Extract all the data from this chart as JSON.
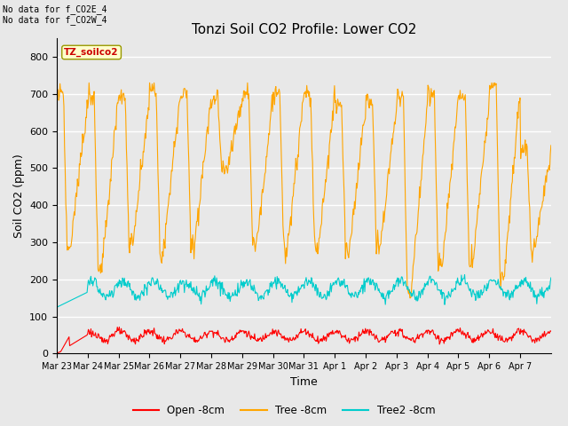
{
  "title": "Tonzi Soil CO2 Profile: Lower CO2",
  "ylabel": "Soil CO2 (ppm)",
  "xlabel": "Time",
  "warning_text": "No data for f_CO2E_4\nNo data for f_CO2W_4",
  "station_label": "TZ_soilco2",
  "ylim": [
    0,
    850
  ],
  "yticks": [
    0,
    100,
    200,
    300,
    400,
    500,
    600,
    700,
    800
  ],
  "legend_labels": [
    "Open -8cm",
    "Tree -8cm",
    "Tree2 -8cm"
  ],
  "legend_colors": [
    "#FF0000",
    "#FFA500",
    "#00CCCC"
  ],
  "bg_color": "#E8E8E8",
  "title_fontsize": 11,
  "axis_label_fontsize": 9,
  "tick_fontsize": 8,
  "xtick_labels": [
    "Mar 23",
    "Mar 24",
    "Mar 25",
    "Mar 26",
    "Mar 27",
    "Mar 28",
    "Mar 29",
    "Mar 30",
    "Mar 31",
    "Apr 1",
    "Apr 2",
    "Apr 3",
    "Apr 4",
    "Apr 5",
    "Apr 6",
    "Apr 7"
  ]
}
